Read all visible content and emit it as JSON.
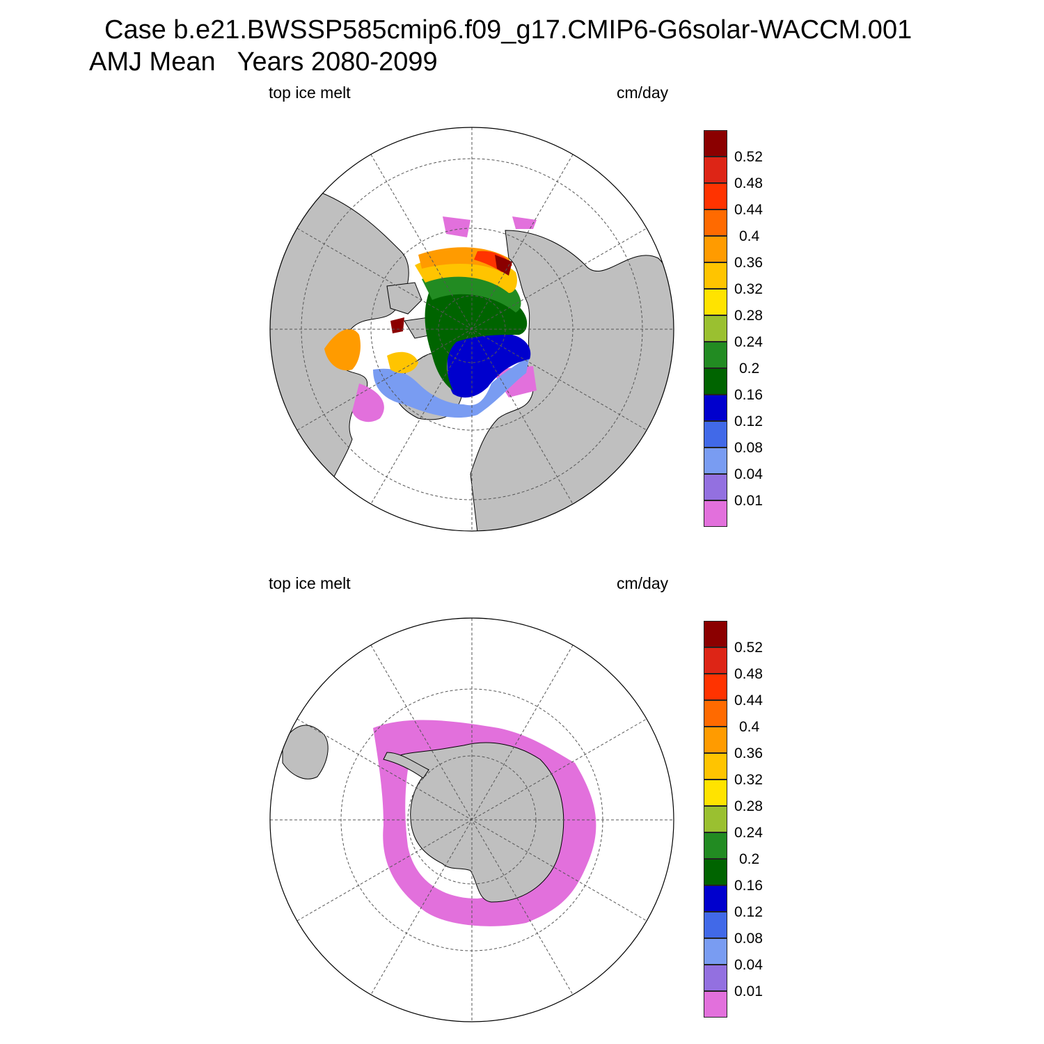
{
  "title": {
    "line1": "Case b.e21.BWSSP585cmip6.f09_g17.CMIP6-G6solar-WACCM.001",
    "line2": "AMJ Mean   Years 2080-2099"
  },
  "panels": [
    {
      "id": "north",
      "left_label": "top ice melt",
      "right_label": "cm/day",
      "hemisphere": "Arctic"
    },
    {
      "id": "south",
      "left_label": "top ice melt",
      "right_label": "cm/day",
      "hemisphere": "Antarctic"
    }
  ],
  "colorbar": {
    "colors": [
      "#e270dc",
      "#9370e0",
      "#799cf2",
      "#4169e8",
      "#0000cd",
      "#006400",
      "#228b22",
      "#9ac030",
      "#ffe300",
      "#ffc400",
      "#ff9b00",
      "#ff6a00",
      "#ff3300",
      "#dd2516",
      "#8b0000"
    ],
    "labels": [
      "0.01",
      "0.04",
      "0.08",
      "0.12",
      "0.16",
      "0.2",
      "0.24",
      "0.28",
      "0.32",
      "0.36",
      "0.4",
      "0.44",
      "0.48",
      "0.52"
    ]
  },
  "map_colors": {
    "land": "#bfbfbf",
    "ocean": "#ffffff",
    "grid": "#555555",
    "coast": "#000000"
  }
}
